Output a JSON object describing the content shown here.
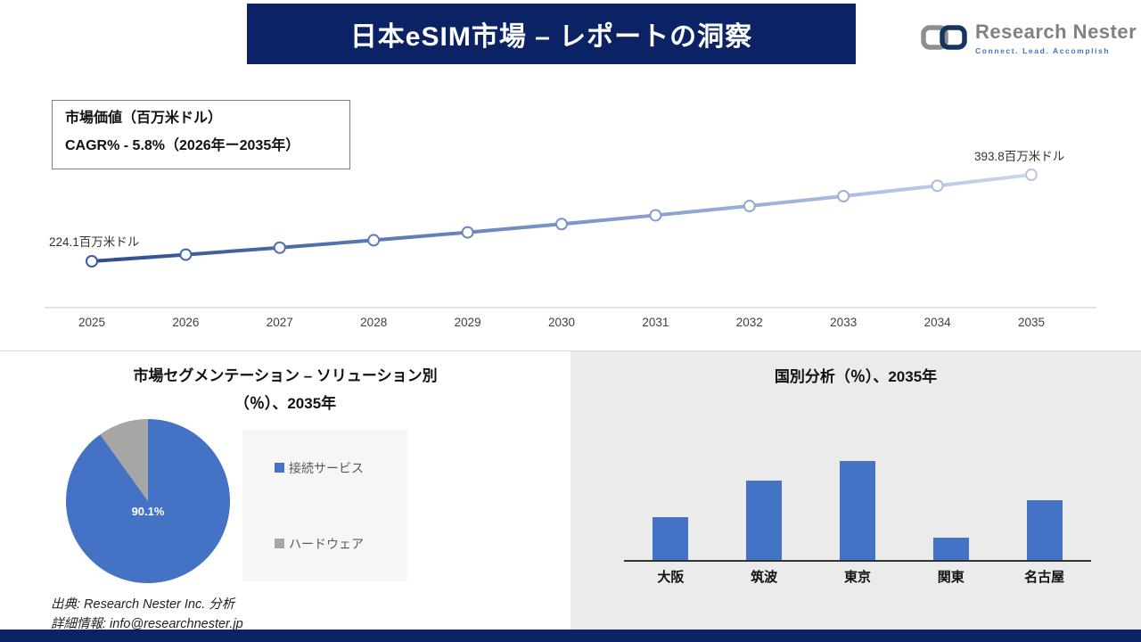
{
  "header": {
    "title": "日本eSIM市場 – レポートの洞察",
    "logo": {
      "name": "Research Nester",
      "tagline": "Connect. Lead. Accomplish"
    }
  },
  "info_box": {
    "line1": "市場価値（百万米ドル）",
    "line2": "CAGR% - 5.8%（2026年ー2035年）"
  },
  "chart_data": [
    {
      "type": "line",
      "title": "市場価値（百万米ドル）",
      "x": [
        "2025",
        "2026",
        "2027",
        "2028",
        "2029",
        "2030",
        "2031",
        "2032",
        "2033",
        "2034",
        "2035"
      ],
      "values": [
        224.1,
        237.1,
        250.8,
        265.4,
        280.8,
        297.1,
        314.3,
        332.5,
        351.8,
        372.2,
        393.8
      ],
      "first_label": "224.1百万米ドル",
      "last_label": "393.8百万米ドル",
      "ylim": [
        200,
        420
      ],
      "grid": false,
      "line_gradient": [
        "#2d4b8e",
        "#7b93c9",
        "#cdd7ee"
      ]
    },
    {
      "type": "pie",
      "title_line1": "市場セグメンテーション – ソリューション別",
      "title_line2": "（％）、2035年",
      "slices": [
        {
          "label": "接続サービス",
          "value": 90.1,
          "color": "#4472c4"
        },
        {
          "label": "ハードウェア",
          "value": 9.9,
          "color": "#a6a6a6"
        }
      ],
      "data_label": "90.1%",
      "legend_position": "right"
    },
    {
      "type": "bar",
      "title": "国別分析（％）、2035年",
      "categories": [
        "大阪",
        "筑波",
        "東京",
        "関東",
        "名古屋"
      ],
      "values": [
        15,
        28,
        35,
        8,
        21
      ],
      "color": "#4472c4",
      "ylim": [
        0,
        40
      ]
    }
  ],
  "footer": {
    "source": "出典: Research Nester Inc. 分析",
    "contact": "詳細情報: info@researchnester.jp"
  }
}
